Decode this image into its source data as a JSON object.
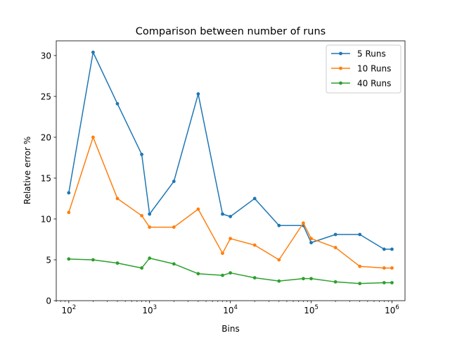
{
  "chart_data": {
    "type": "line",
    "title": "Comparison between number of runs",
    "xlabel": "Bins",
    "ylabel": "Relative error %",
    "xscale": "log",
    "xlim": [
      70,
      1450000
    ],
    "ylim": [
      0,
      31.8
    ],
    "x_ticks": [
      {
        "value": 100,
        "base": "10",
        "exp": "2"
      },
      {
        "value": 1000,
        "base": "10",
        "exp": "3"
      },
      {
        "value": 10000,
        "base": "10",
        "exp": "4"
      },
      {
        "value": 100000,
        "base": "10",
        "exp": "5"
      },
      {
        "value": 1000000,
        "base": "10",
        "exp": "6"
      }
    ],
    "y_ticks": [
      0,
      5,
      10,
      15,
      20,
      25,
      30
    ],
    "legend_position": "top-right",
    "x": [
      100,
      200,
      400,
      800,
      1000,
      2000,
      4000,
      8000,
      10000,
      20000,
      40000,
      80000,
      100000,
      200000,
      400000,
      800000,
      1000000
    ],
    "series": [
      {
        "name": "5 Runs",
        "color": "#1f77b4",
        "values": [
          13.2,
          30.4,
          24.1,
          17.9,
          10.6,
          14.6,
          25.3,
          10.6,
          10.3,
          12.5,
          9.2,
          9.2,
          7.1,
          8.1,
          8.1,
          6.3,
          6.3
        ]
      },
      {
        "name": "10 Runs",
        "color": "#ff7f0e",
        "values": [
          10.8,
          20.0,
          12.5,
          10.4,
          9.0,
          9.0,
          11.2,
          5.8,
          7.6,
          6.8,
          5.0,
          9.5,
          7.6,
          6.5,
          4.2,
          4.0,
          4.0
        ]
      },
      {
        "name": "40 Runs",
        "color": "#2ca02c",
        "values": [
          5.1,
          5.0,
          4.6,
          4.0,
          5.2,
          4.5,
          3.3,
          3.1,
          3.4,
          2.8,
          2.4,
          2.7,
          2.7,
          2.3,
          2.1,
          2.2,
          2.2
        ]
      }
    ]
  }
}
